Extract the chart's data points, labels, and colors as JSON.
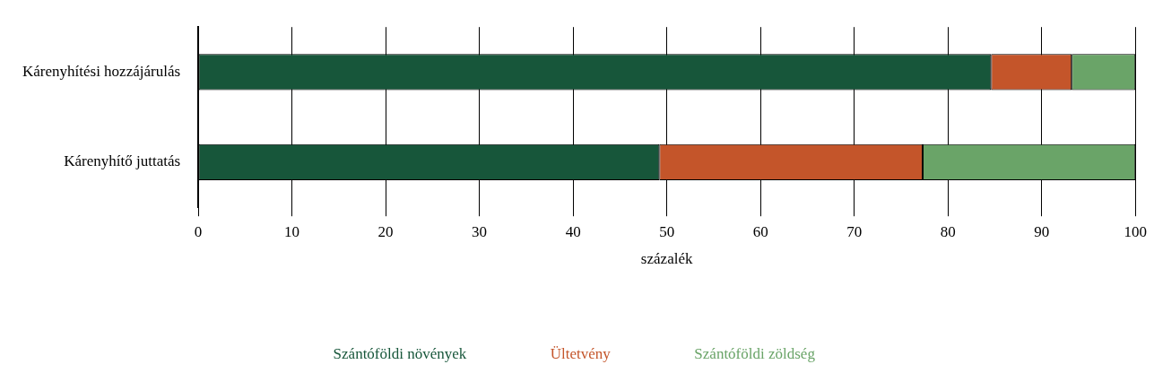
{
  "chart_data": {
    "type": "bar",
    "orientation": "horizontal",
    "stacked": true,
    "xlabel": "százalék",
    "categories": [
      "Kárenyhítési hozzájárulás",
      "Kárenyhítő juttatás"
    ],
    "series": [
      {
        "name": "Szántóföldi növények",
        "color": "#17563a",
        "values": [
          84.6,
          49.2
        ]
      },
      {
        "name": "Ültetvény",
        "color": "#c4552a",
        "values": [
          8.6,
          28.1
        ]
      },
      {
        "name": "Szántóföldi zöldség",
        "color": "#6aa468",
        "values": [
          6.8,
          22.7
        ]
      }
    ],
    "xlim": [
      0,
      100
    ],
    "xticks": [
      0,
      10,
      20,
      30,
      40,
      50,
      60,
      70,
      80,
      90,
      100
    ],
    "grid": "x",
    "legend": "bottom"
  }
}
